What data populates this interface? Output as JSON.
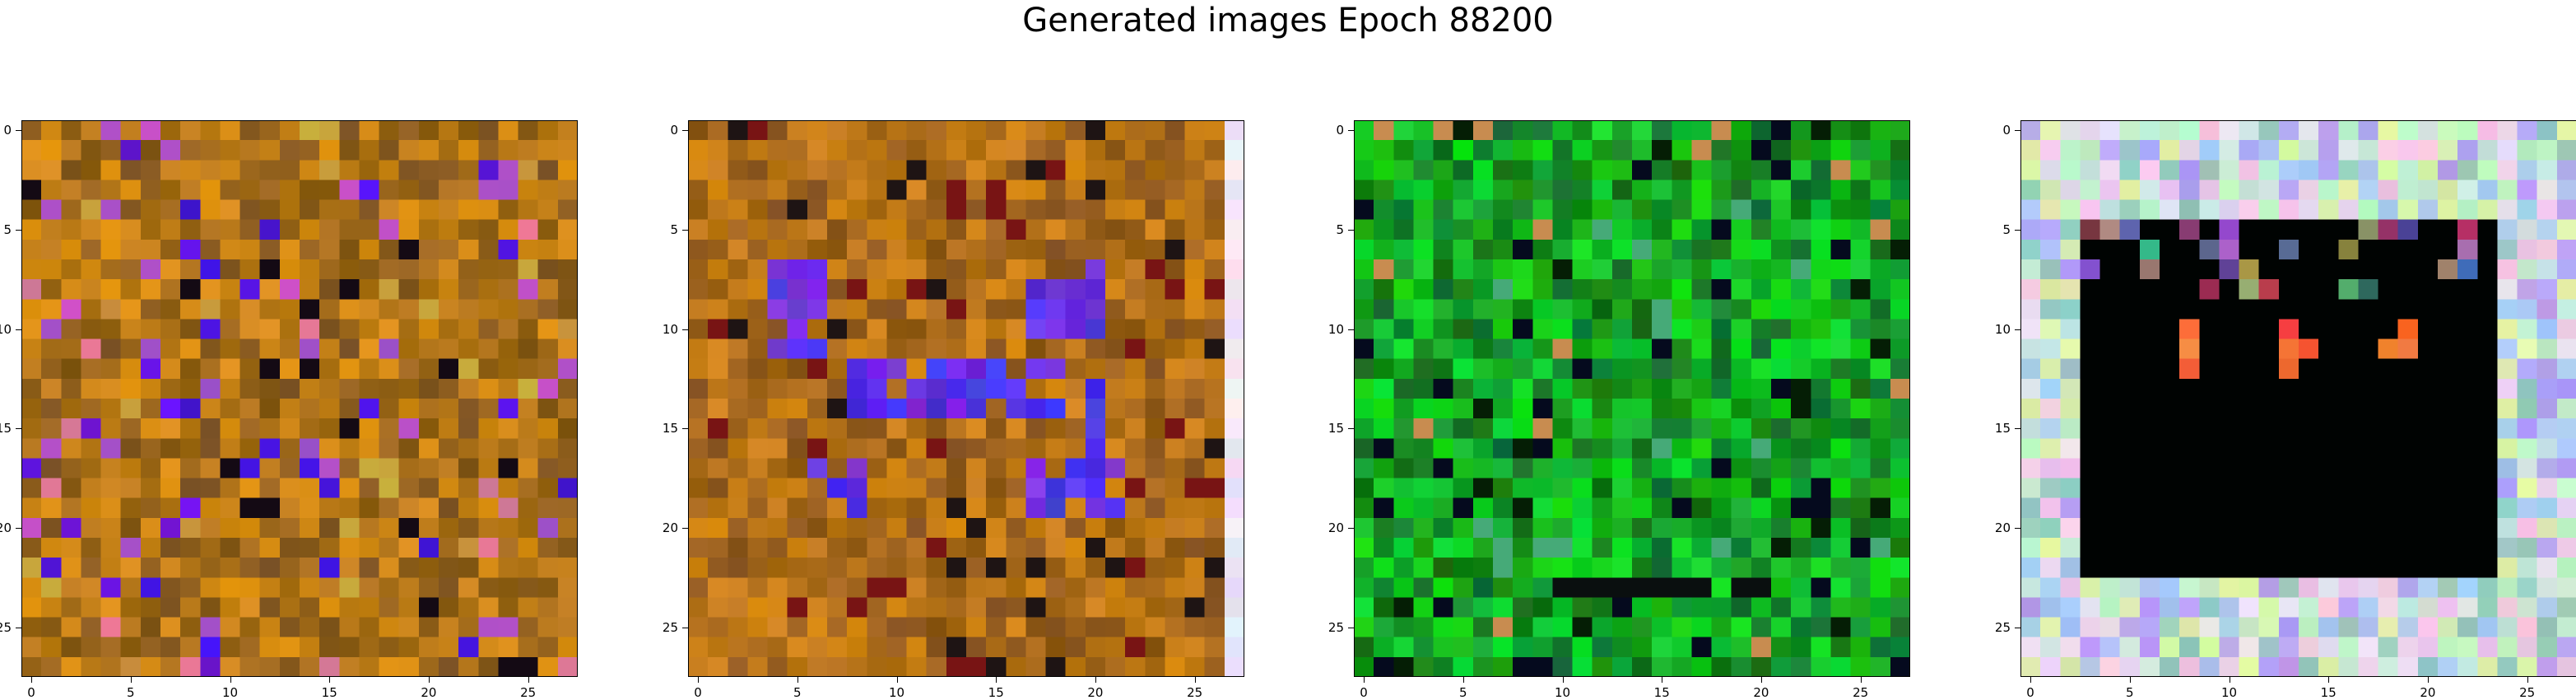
{
  "figure": {
    "title": "Generated images Epoch 88200"
  },
  "axes": {
    "x_ticks": [
      "0",
      "5",
      "10",
      "15",
      "20",
      "25"
    ],
    "y_ticks": [
      "0",
      "5",
      "10",
      "15",
      "20",
      "25"
    ]
  },
  "images": [
    {
      "name": "generated-image-1",
      "palette": "olive-orange with blue and magenta pixels"
    },
    {
      "name": "generated-image-2",
      "palette": "olive-orange with blue patches"
    },
    {
      "name": "generated-image-3",
      "palette": "green noise"
    },
    {
      "name": "generated-image-4",
      "palette": "pastel border around black rectangle with orange dots"
    }
  ]
}
